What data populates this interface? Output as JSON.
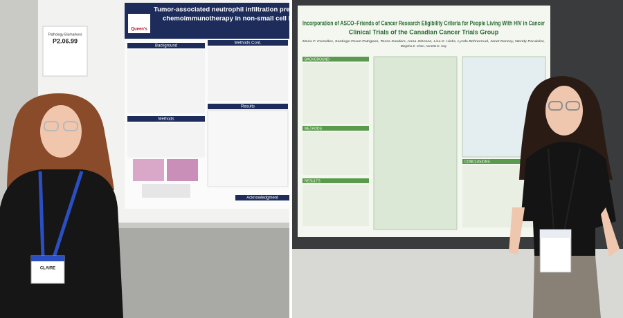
{
  "left_photo": {
    "poster": {
      "number_card_title": "Pathology Biomarkers",
      "number_card": "P2.06.99",
      "logo": "Queen's",
      "title_lines": [
        "Tumor-associated neutrophil infiltration predicts ben",
        "chemoimmunotherapy in non-small cell lu"
      ],
      "sections": [
        "Background",
        "Methods",
        "Methods Cont.",
        "Results",
        "Acknowledgment"
      ]
    },
    "badge": "CLAIRE"
  },
  "right_photo": {
    "poster": {
      "title_lines": [
        "Incorporation of ASCO–Friends of Cancer Research Eligibility Criteria for People Living With HIV in Cancer",
        "Clinical Trials of the Canadian Cancer Trials Group"
      ],
      "authors": [
        "Maria F. Cornelles, Santiago Perez-Patrigeon, Tessa Sanders, Anna Johnson, Lisa K. Hicks, Lynda Bohnenrvel, Janet Dancey, Wendy Parulekar,",
        "Bingshu E. Chen, Annette E. Hay"
      ],
      "sections": [
        "BACKGROUND",
        "METHODS",
        "RESULTS",
        "CONCLUSIONS"
      ]
    }
  }
}
